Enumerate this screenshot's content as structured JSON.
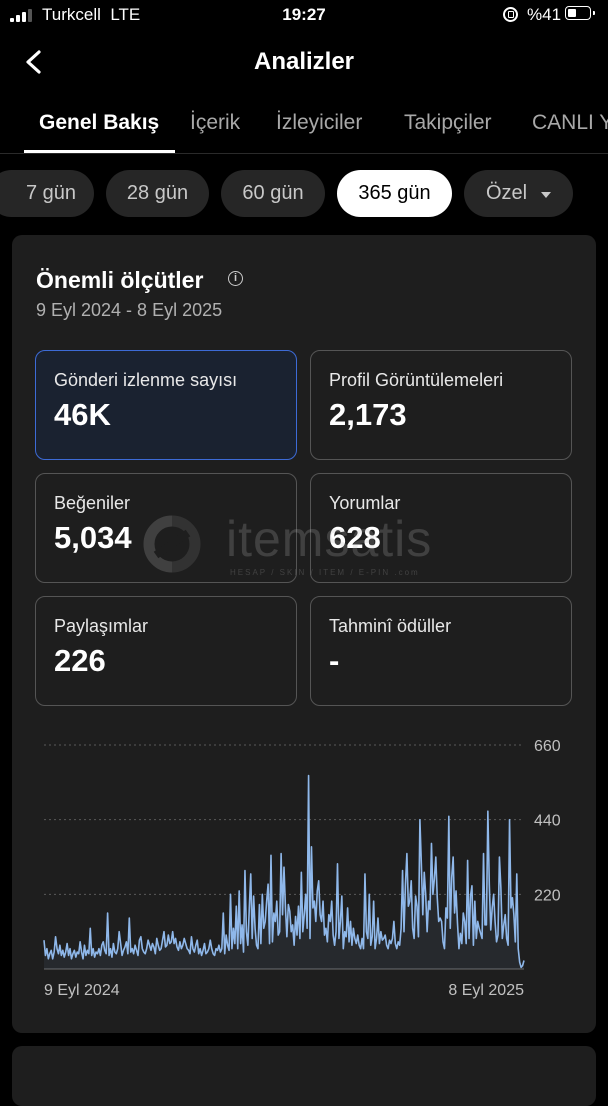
{
  "status_bar": {
    "carrier": "Turkcell",
    "network": "LTE",
    "time": "19:27",
    "battery": "%41",
    "battery_level": 0.41
  },
  "header": {
    "title": "Analizler"
  },
  "tabs": [
    "Genel Bakış",
    "İçerik",
    "İzleyiciler",
    "Takipçiler",
    "CANLI Y"
  ],
  "active_tab": "Genel Bakış",
  "periods": [
    "7 gün",
    "28 gün",
    "60 gün",
    "365 gün",
    "Özel"
  ],
  "active_period": "365 gün",
  "metrics_section": {
    "title": "Önemli ölçütler",
    "date_range": "9 Eyl 2024 - 8 Eyl 2025",
    "metrics": [
      {
        "label": "Gönderi izlenme sayısı",
        "value": "46K",
        "selected": true
      },
      {
        "label": "Profil Görüntülemeleri",
        "value": "2,173",
        "selected": false
      },
      {
        "label": "Beğeniler",
        "value": "5,034",
        "selected": false
      },
      {
        "label": "Yorumlar",
        "value": "628",
        "selected": false
      },
      {
        "label": "Paylaşımlar",
        "value": "226",
        "selected": false
      },
      {
        "label": "Tahminî ödüller",
        "value": "-",
        "selected": false
      }
    ]
  },
  "watermark": {
    "text": "itemsatis",
    "subtext": "HESAP / SKIN / ITEM / E-PIN",
    "suffix": ".com"
  },
  "chart_data": {
    "type": "line",
    "x_start_label": "9 Eyl 2024",
    "x_end_label": "8 Eyl 2025",
    "ylim": [
      0,
      660
    ],
    "yticks": [
      "660",
      "440",
      "220"
    ],
    "ytick_values": [
      660,
      440,
      220
    ],
    "grid": "dotted horizontal",
    "color": "#8fb8ea",
    "series": [
      {
        "values": [
          85,
          40,
          60,
          30,
          45,
          55,
          30,
          50,
          95,
          60,
          45,
          70,
          40,
          55,
          35,
          50,
          75,
          40,
          60,
          30,
          45,
          55,
          35,
          50,
          45,
          80,
          50,
          30,
          70,
          40,
          55,
          45,
          120,
          40,
          60,
          35,
          50,
          45,
          60,
          40,
          70,
          80,
          55,
          45,
          165,
          40,
          60,
          35,
          75,
          50,
          45,
          60,
          110,
          75,
          40,
          55,
          65,
          80,
          45,
          150,
          50,
          60,
          45,
          70,
          55,
          40,
          85,
          95,
          60,
          50,
          45,
          60,
          85,
          70,
          55,
          75,
          65,
          45,
          90,
          70,
          55,
          60,
          85,
          110,
          65,
          70,
          100,
          75,
          80,
          110,
          75,
          90,
          65,
          55,
          80,
          60,
          70,
          90,
          75,
          60,
          55,
          45,
          95,
          60,
          50,
          70,
          85,
          45,
          60,
          40,
          55,
          75,
          45,
          50,
          60,
          85,
          60,
          45,
          40,
          60,
          55,
          70,
          50,
          60,
          165,
          45,
          100,
          70,
          55,
          220,
          60,
          120,
          75,
          185,
          60,
          230,
          75,
          130,
          50,
          290,
          110,
          70,
          180,
          280,
          90,
          215,
          120,
          70,
          60,
          190,
          75,
          220,
          120,
          140,
          200,
          250,
          75,
          335,
          80,
          165,
          140,
          200,
          100,
          110,
          340,
          160,
          300,
          180,
          95,
          190,
          170,
          110,
          130,
          70,
          155,
          100,
          185,
          90,
          285,
          110,
          160,
          220,
          120,
          570,
          90,
          360,
          180,
          200,
          140,
          230,
          260,
          160,
          140,
          200,
          100,
          120,
          80,
          160,
          140,
          200,
          100,
          70,
          110,
          310,
          90,
          140,
          215,
          60,
          110,
          95,
          180,
          80,
          140,
          70,
          120,
          90,
          75,
          100,
          70,
          60,
          90,
          60,
          280,
          110,
          90,
          220,
          70,
          95,
          200,
          60,
          90,
          150,
          75,
          110,
          85,
          90,
          100,
          70,
          60,
          85,
          75,
          90,
          140,
          75,
          60,
          80,
          70,
          120,
          290,
          110,
          250,
          340,
          185,
          200,
          260,
          120,
          90,
          215,
          185,
          95,
          440,
          310,
          160,
          285,
          220,
          110,
          200,
          175,
          370,
          220,
          265,
          330,
          210,
          140,
          150,
          140,
          80,
          60,
          180,
          150,
          450,
          120,
          270,
          330,
          165,
          230,
          135,
          60,
          105,
          75,
          165,
          140,
          75,
          320,
          90,
          215,
          245,
          70,
          200,
          90,
          140,
          120,
          105,
          90,
          340,
          130,
          130,
          465,
          250,
          115,
          180,
          220,
          140,
          80,
          100,
          330,
          240,
          90,
          130,
          160,
          90,
          70,
          440,
          180,
          210,
          160,
          80,
          280,
          60,
          20,
          5,
          10,
          25
        ]
      }
    ]
  }
}
